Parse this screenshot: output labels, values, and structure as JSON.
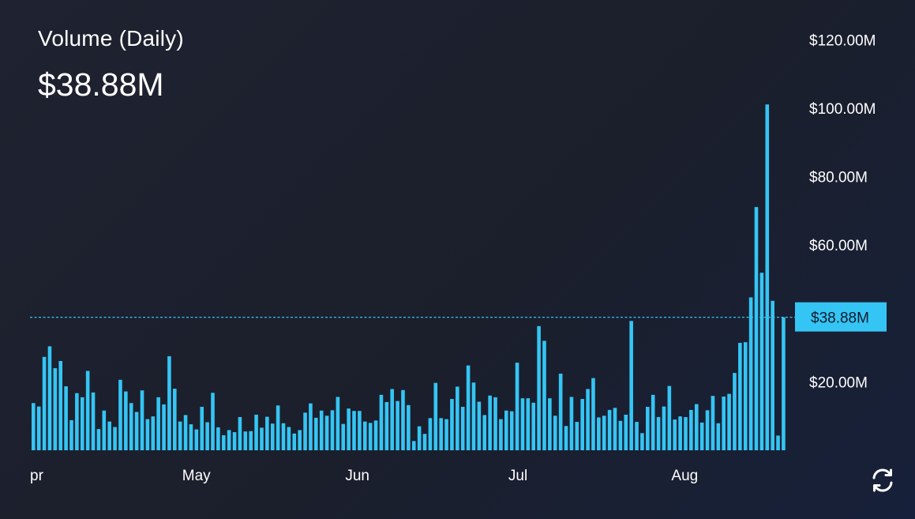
{
  "header": {
    "title": "Volume (Daily)",
    "current_value": "$38.88M"
  },
  "colors": {
    "bar": "#35c5f4",
    "badge": "#35c5f4",
    "badge_text": "#0e1a2b",
    "reference_line": "#35c5f4",
    "background": "#1d2130"
  },
  "icons": {
    "refresh": "refresh-icon"
  },
  "chart_data": {
    "type": "bar",
    "title": "Volume (Daily)",
    "current_value_label": "$38.88M",
    "current_value": 38.88,
    "ylim": [
      0,
      124
    ],
    "y_ticks": [
      {
        "value": 120,
        "label": "$120.00M"
      },
      {
        "value": 100,
        "label": "$100.00M"
      },
      {
        "value": 80,
        "label": "$80.00M"
      },
      {
        "value": 60,
        "label": "$60.00M"
      },
      {
        "value": 20,
        "label": "$20.00M"
      }
    ],
    "x_ticks": [
      {
        "index": 0,
        "label": "pr"
      },
      {
        "index": 28,
        "label": "May"
      },
      {
        "index": 58,
        "label": "Jun"
      },
      {
        "index": 88,
        "label": "Jul"
      },
      {
        "index": 118,
        "label": "Aug"
      }
    ],
    "values": [
      13.8,
      12.8,
      27.3,
      30.4,
      24.0,
      26.1,
      18.7,
      8.8,
      16.7,
      15.5,
      23.2,
      16.9,
      6.2,
      11.6,
      8.4,
      6.8,
      20.6,
      17.2,
      13.8,
      11.2,
      17.5,
      9.1,
      9.9,
      15.5,
      13.4,
      27.5,
      18.0,
      8.4,
      10.3,
      7.6,
      6.1,
      12.7,
      8.2,
      16.8,
      6.7,
      4.4,
      5.9,
      5.3,
      9.7,
      5.5,
      5.6,
      10.4,
      6.6,
      9.8,
      7.8,
      13.1,
      7.9,
      6.8,
      4.9,
      5.9,
      11.0,
      13.7,
      9.5,
      11.6,
      10.1,
      11.7,
      15.6,
      7.7,
      12.2,
      11.5,
      11.5,
      8.4,
      8.0,
      8.7,
      16.2,
      14.1,
      17.9,
      14.4,
      17.6,
      13.2,
      2.7,
      7.0,
      4.8,
      9.4,
      19.7,
      9.4,
      9.1,
      15.0,
      18.6,
      12.7,
      24.8,
      19.8,
      14.2,
      10.3,
      16.0,
      15.5,
      9.1,
      11.6,
      11.4,
      25.6,
      15.2,
      15.2,
      13.9,
      36.3,
      32.0,
      15.2,
      10.1,
      22.4,
      7.1,
      15.6,
      8.3,
      15.0,
      17.9,
      21.1,
      9.6,
      10.1,
      11.8,
      12.4,
      8.6,
      10.4,
      37.8,
      8.3,
      5.0,
      12.7,
      16.2,
      9.7,
      12.8,
      18.8,
      9.0,
      9.9,
      9.7,
      11.8,
      13.5,
      8.1,
      11.7,
      15.9,
      7.9,
      15.7,
      16.5,
      22.6,
      31.4,
      31.6,
      44.7,
      71.1,
      51.9,
      101.1,
      43.7,
      4.3,
      38.88
    ]
  }
}
